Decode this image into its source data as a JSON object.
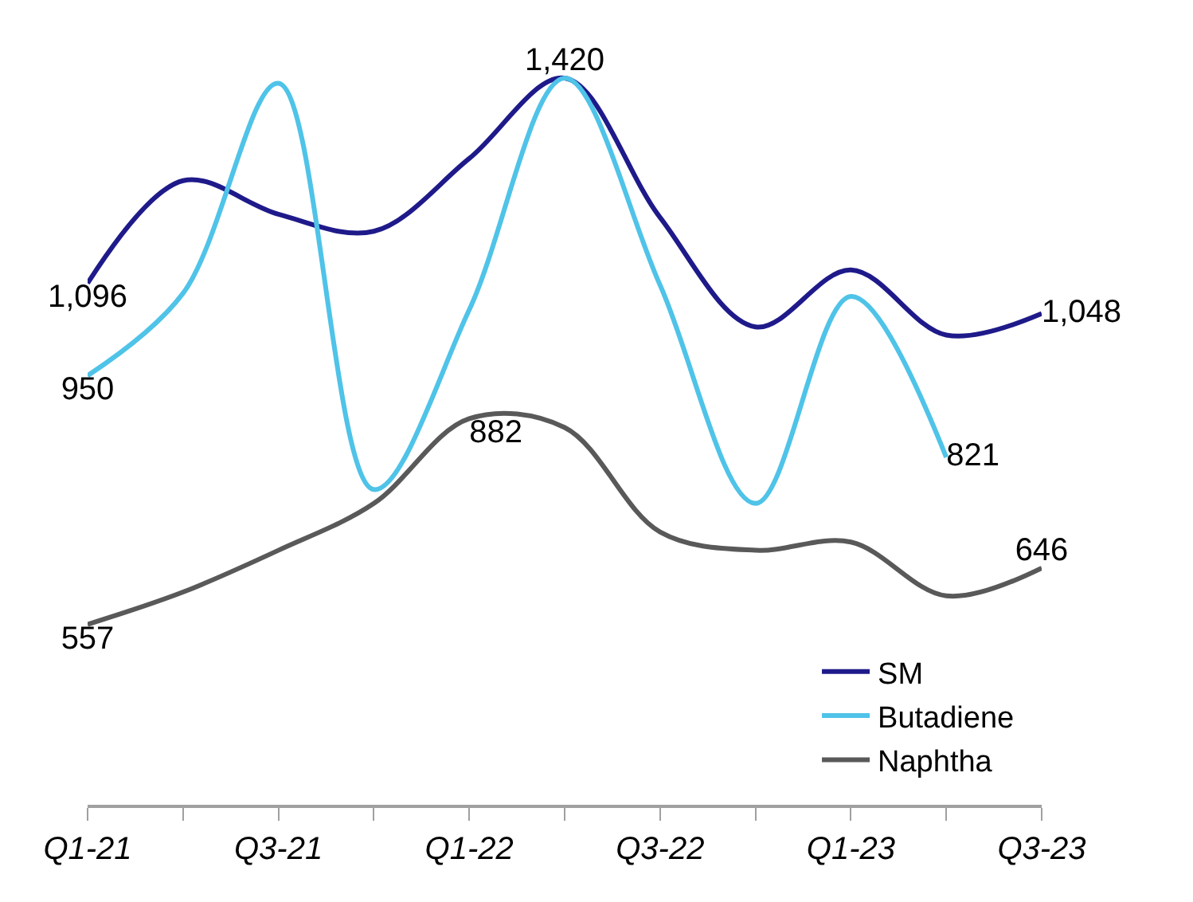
{
  "chart_data": {
    "type": "line",
    "categories": [
      "Q1-21",
      null,
      "Q3-21",
      null,
      "Q1-22",
      null,
      "Q3-22",
      null,
      "Q1-23",
      null,
      "Q3-23"
    ],
    "series": [
      {
        "name": "SM",
        "color": "#1f1a8a",
        "values": [
          1096,
          1258,
          1205,
          1178,
          1293,
          1420,
          1200,
          1027,
          1117,
          1014,
          1048
        ],
        "value_labels": [
          "1,096",
          null,
          null,
          null,
          null,
          "1,420",
          null,
          null,
          null,
          null,
          "1,048"
        ]
      },
      {
        "name": "Butadiene",
        "color": "#4fc3e8",
        "values": [
          950,
          1080,
          1412,
          770,
          1054,
          1420,
          1093,
          748,
          1075,
          821,
          null
        ],
        "value_labels": [
          "950",
          null,
          null,
          null,
          null,
          null,
          null,
          null,
          null,
          "821",
          null
        ]
      },
      {
        "name": "Naphtha",
        "color": "#595959",
        "values": [
          557,
          608,
          674,
          748,
          882,
          868,
          703,
          674,
          687,
          602,
          646
        ],
        "value_labels": [
          "557",
          null,
          null,
          null,
          "882",
          null,
          null,
          null,
          null,
          null,
          "646"
        ]
      }
    ],
    "legend": "bottom right",
    "marker": "none",
    "line_style": "solid",
    "tick_labels": "x"
  }
}
